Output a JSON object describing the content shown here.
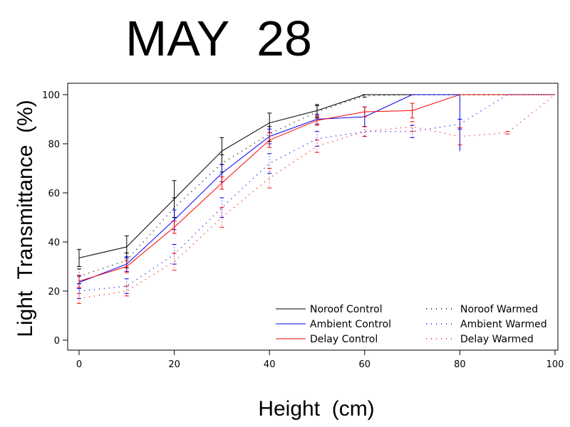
{
  "chart_data": {
    "type": "line",
    "title": "MAY  28",
    "xlabel": "Height  (cm)",
    "ylabel": "Light  Transmittance  (%)",
    "xlim": [
      0,
      100
    ],
    "ylim": [
      0,
      100
    ],
    "xticks": [
      0,
      20,
      40,
      60,
      80,
      100
    ],
    "yticks": [
      0,
      20,
      40,
      60,
      80,
      100
    ],
    "grid": false,
    "legend_position": "bottom-right",
    "series": [
      {
        "name": "Noroof Control",
        "style": "solid",
        "color": "#000000",
        "x": [
          0,
          10,
          20,
          30,
          40,
          50,
          60,
          70,
          80,
          90,
          100
        ],
        "y": [
          33.5,
          38,
          57.5,
          77,
          88.5,
          93.5,
          100,
          100,
          100,
          100,
          100
        ],
        "err": [
          3.5,
          4.5,
          7.5,
          5.5,
          4,
          2.5,
          0,
          0,
          0,
          0,
          0
        ]
      },
      {
        "name": "Ambient Control",
        "style": "solid",
        "color": "#0000ff",
        "x": [
          0,
          10,
          20,
          30,
          40,
          50,
          60,
          70,
          80,
          90,
          100
        ],
        "y": [
          23.5,
          31,
          49,
          68,
          83,
          90,
          91,
          100,
          100,
          100,
          100
        ],
        "err": [
          2.5,
          3,
          4,
          3.5,
          3,
          2,
          4,
          0,
          0,
          0,
          0
        ],
        "drop": {
          "x": 80,
          "y": 77
        }
      },
      {
        "name": "Delay Control",
        "style": "solid",
        "color": "#ff0000",
        "x": [
          0,
          10,
          20,
          30,
          40,
          50,
          60,
          70,
          80,
          90,
          100
        ],
        "y": [
          24,
          30,
          46,
          64,
          81.5,
          89.5,
          93,
          93.5,
          100,
          100,
          100
        ],
        "err": [
          2.5,
          2.5,
          2.5,
          2.5,
          3,
          2,
          2,
          3,
          0,
          0,
          0
        ]
      },
      {
        "name": "Noroof Warmed",
        "style": "dotted",
        "color": "#000000",
        "x": [
          0,
          10,
          20,
          30,
          40,
          50,
          60,
          70,
          80,
          90,
          100
        ],
        "y": [
          26,
          32.5,
          54,
          72,
          84,
          93,
          99.5,
          100,
          100,
          100,
          100
        ],
        "err": [
          3,
          3,
          4,
          3.5,
          3,
          2.5,
          0.5,
          0,
          0,
          0,
          0
        ]
      },
      {
        "name": "Ambient Warmed",
        "style": "dotted",
        "color": "#0000ff",
        "x": [
          0,
          10,
          20,
          30,
          40,
          50,
          60,
          70,
          80,
          90,
          100
        ],
        "y": [
          20,
          22,
          35,
          54,
          72,
          82,
          85,
          85,
          88,
          100,
          100
        ],
        "err": [
          3,
          3,
          4,
          4,
          4,
          3,
          2,
          2.5,
          2,
          0,
          0
        ]
      },
      {
        "name": "Delay Warmed",
        "style": "dotted",
        "color": "#ff0000",
        "x": [
          0,
          10,
          20,
          30,
          40,
          50,
          60,
          70,
          80,
          90,
          100
        ],
        "y": [
          17,
          20,
          32,
          50,
          66,
          79,
          85,
          87,
          83,
          84.5,
          100
        ],
        "err": [
          2,
          2,
          3.5,
          4,
          4,
          2.5,
          2,
          2,
          3.5,
          0.5,
          0
        ]
      }
    ]
  }
}
